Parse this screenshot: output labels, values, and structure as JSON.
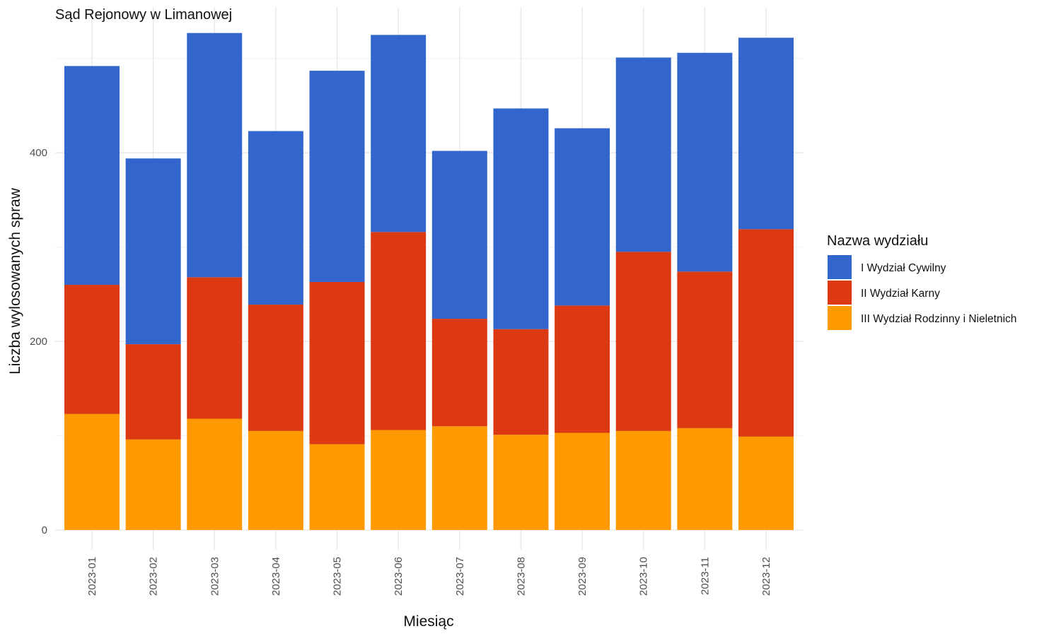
{
  "chart_data": {
    "type": "bar",
    "stacked": true,
    "title": "Sąd Rejonowy w Limanowej",
    "xlabel": "Miesiąc",
    "ylabel": "Liczba wylosowanych spraw",
    "ylim": [
      0,
      550
    ],
    "y_ticks": [
      0,
      200,
      400
    ],
    "grid": true,
    "legend_position": "right",
    "legend_title": "Nazwa wydziału",
    "categories": [
      "2023-01",
      "2023-02",
      "2023-03",
      "2023-04",
      "2023-05",
      "2023-06",
      "2023-07",
      "2023-08",
      "2023-09",
      "2023-10",
      "2023-11",
      "2023-12"
    ],
    "series": [
      {
        "name": "III Wydział Rodzinny i Nieletnich",
        "color": "#ff9900",
        "values": [
          123,
          96,
          118,
          105,
          91,
          106,
          110,
          101,
          103,
          105,
          108,
          99
        ]
      },
      {
        "name": "II Wydział Karny",
        "color": "#dc3912",
        "values": [
          137,
          101,
          150,
          134,
          172,
          210,
          114,
          112,
          135,
          190,
          166,
          220
        ]
      },
      {
        "name": "I Wydział Cywilny",
        "color": "#3366cc",
        "values": [
          232,
          197,
          259,
          184,
          224,
          209,
          178,
          234,
          188,
          206,
          232,
          203
        ]
      }
    ],
    "legend_order": [
      "I Wydział Cywilny",
      "II Wydział Karny",
      "III Wydział Rodzinny i Nieletnich"
    ]
  }
}
